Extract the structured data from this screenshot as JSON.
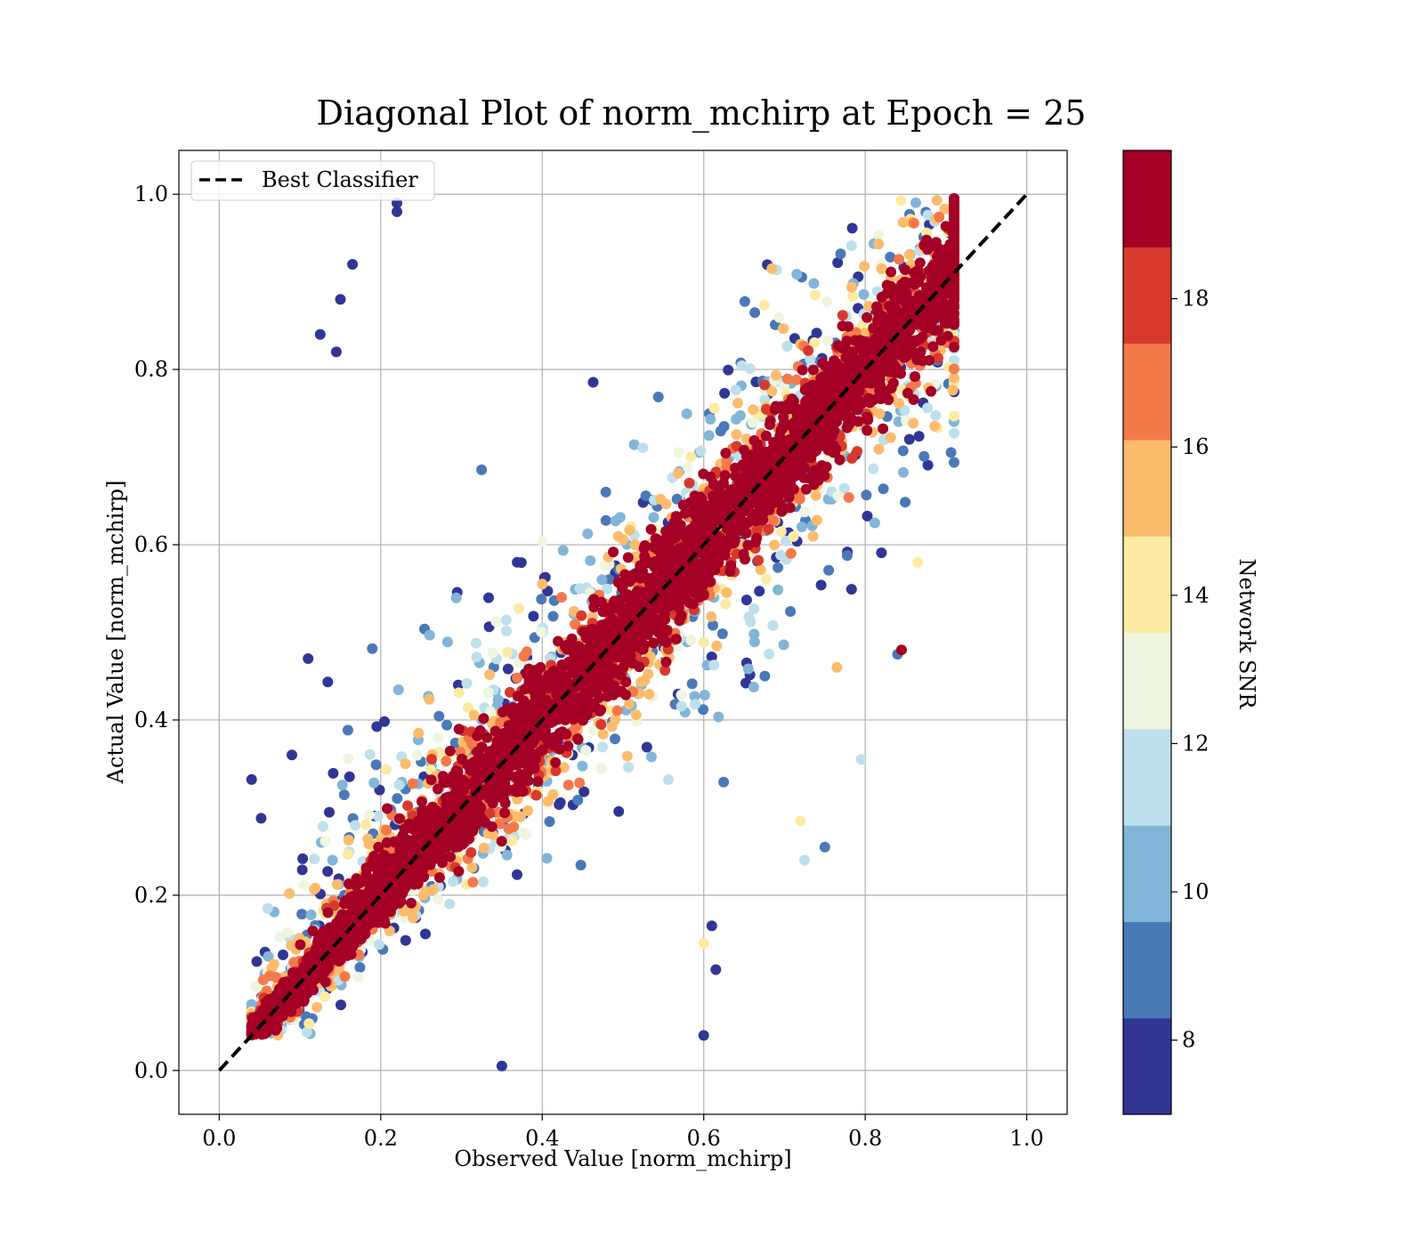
{
  "chart_data": {
    "type": "scatter",
    "title": "Diagonal Plot of norm_mchirp at Epoch = 25",
    "xlabel": "Observed Value [norm_mchirp]",
    "ylabel": "Actual Value [norm_mchirp]",
    "xlim": [
      -0.05,
      1.05
    ],
    "ylim": [
      -0.05,
      1.05
    ],
    "xticks": [
      "0.0",
      "0.2",
      "0.4",
      "0.6",
      "0.8",
      "1.0"
    ],
    "yticks": [
      "0.0",
      "0.2",
      "0.4",
      "0.6",
      "0.8",
      "1.0"
    ],
    "grid": true,
    "legend": {
      "position": "upper-left",
      "entries": [
        "Best Classifier"
      ]
    },
    "reference_line": {
      "name": "Best Classifier",
      "x": [
        0,
        1
      ],
      "y": [
        0,
        1
      ],
      "style": "dashed",
      "color": "#000000"
    },
    "colorbar": {
      "label": "Network SNR",
      "range": [
        7,
        20
      ],
      "ticks": [
        "8",
        "10",
        "12",
        "14",
        "16",
        "18"
      ],
      "bins": [
        {
          "from": 7,
          "to": 8.3,
          "color": "#313695"
        },
        {
          "from": 8.3,
          "to": 9.6,
          "color": "#4a79b7"
        },
        {
          "from": 9.6,
          "to": 10.9,
          "color": "#82b5d7"
        },
        {
          "from": 10.9,
          "to": 12.2,
          "color": "#bde0ec"
        },
        {
          "from": 12.2,
          "to": 13.5,
          "color": "#eef6e0"
        },
        {
          "from": 13.5,
          "to": 14.8,
          "color": "#fdeba3"
        },
        {
          "from": 14.8,
          "to": 16.1,
          "color": "#fdbc6c"
        },
        {
          "from": 16.1,
          "to": 17.4,
          "color": "#f4794a"
        },
        {
          "from": 17.4,
          "to": 18.7,
          "color": "#d73a2c"
        },
        {
          "from": 18.7,
          "to": 20,
          "color": "#a50026"
        }
      ]
    },
    "points_summary": {
      "description_free": true,
      "x_range": [
        0.04,
        0.91
      ],
      "y_range": [
        0.0,
        1.0
      ],
      "n_approx": 6000
    },
    "outliers": [
      {
        "x": 0.22,
        "y": 0.98,
        "snr": 7.5
      },
      {
        "x": 0.22,
        "y": 0.99,
        "snr": 7.5
      },
      {
        "x": 0.165,
        "y": 0.92,
        "snr": 7.5
      },
      {
        "x": 0.15,
        "y": 0.88,
        "snr": 7.5
      },
      {
        "x": 0.125,
        "y": 0.84,
        "snr": 7.5
      },
      {
        "x": 0.145,
        "y": 0.82,
        "snr": 7.5
      },
      {
        "x": 0.11,
        "y": 0.47,
        "snr": 7.5
      },
      {
        "x": 0.09,
        "y": 0.36,
        "snr": 7.5
      },
      {
        "x": 0.06,
        "y": 0.185,
        "snr": 11.5
      },
      {
        "x": 0.6,
        "y": 0.04,
        "snr": 7.5
      },
      {
        "x": 0.35,
        "y": 0.005,
        "snr": 7.5
      },
      {
        "x": 0.615,
        "y": 0.115,
        "snr": 7.5
      },
      {
        "x": 0.61,
        "y": 0.165,
        "snr": 7.5
      },
      {
        "x": 0.6,
        "y": 0.145,
        "snr": 13.5
      },
      {
        "x": 0.795,
        "y": 0.355,
        "snr": 11.5
      },
      {
        "x": 0.84,
        "y": 0.475,
        "snr": 8.5
      },
      {
        "x": 0.845,
        "y": 0.48,
        "snr": 19.5
      },
      {
        "x": 0.765,
        "y": 0.46,
        "snr": 15.5
      },
      {
        "x": 0.725,
        "y": 0.24,
        "snr": 11.5
      },
      {
        "x": 0.72,
        "y": 0.285,
        "snr": 14.5
      },
      {
        "x": 0.75,
        "y": 0.255,
        "snr": 8.5
      },
      {
        "x": 0.91,
        "y": 0.965,
        "snr": 19.5
      },
      {
        "x": 0.9,
        "y": 0.885,
        "snr": 13.5
      },
      {
        "x": 0.865,
        "y": 0.58,
        "snr": 14.5
      }
    ]
  }
}
